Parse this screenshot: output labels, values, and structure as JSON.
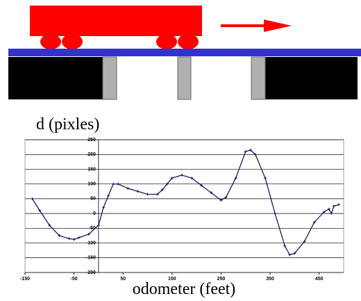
{
  "chart_data": {
    "type": "line",
    "ylabel": "d (pixles)",
    "xlabel": "odometer (feet)",
    "x": [
      -135,
      -120,
      -100,
      -80,
      -60,
      -50,
      -40,
      -20,
      0,
      10,
      20,
      30,
      40,
      60,
      80,
      100,
      120,
      130,
      140,
      150,
      170,
      190,
      210,
      230,
      250,
      260,
      280,
      300,
      310,
      320,
      340,
      360,
      380,
      390,
      400,
      420,
      440,
      460,
      470,
      475,
      480,
      490
    ],
    "series": [
      {
        "color": "#1a1a5e",
        "values": [
          50,
          10,
          -40,
          -75,
          -85,
          -88,
          -82,
          -70,
          -40,
          20,
          60,
          100,
          100,
          85,
          75,
          65,
          65,
          80,
          100,
          120,
          130,
          120,
          95,
          70,
          45,
          55,
          120,
          210,
          215,
          200,
          120,
          0,
          -110,
          -140,
          -135,
          -95,
          -30,
          5,
          15,
          0,
          25,
          30
        ]
      }
    ],
    "xlim": [
      -150,
      500
    ],
    "ylim": [
      -200,
      250
    ],
    "xticks": [
      -150,
      -50,
      50,
      150,
      250,
      350,
      450
    ],
    "yticks": [
      -200,
      -150,
      -100,
      -50,
      0,
      50,
      100,
      150,
      200,
      250
    ],
    "grid": true
  }
}
